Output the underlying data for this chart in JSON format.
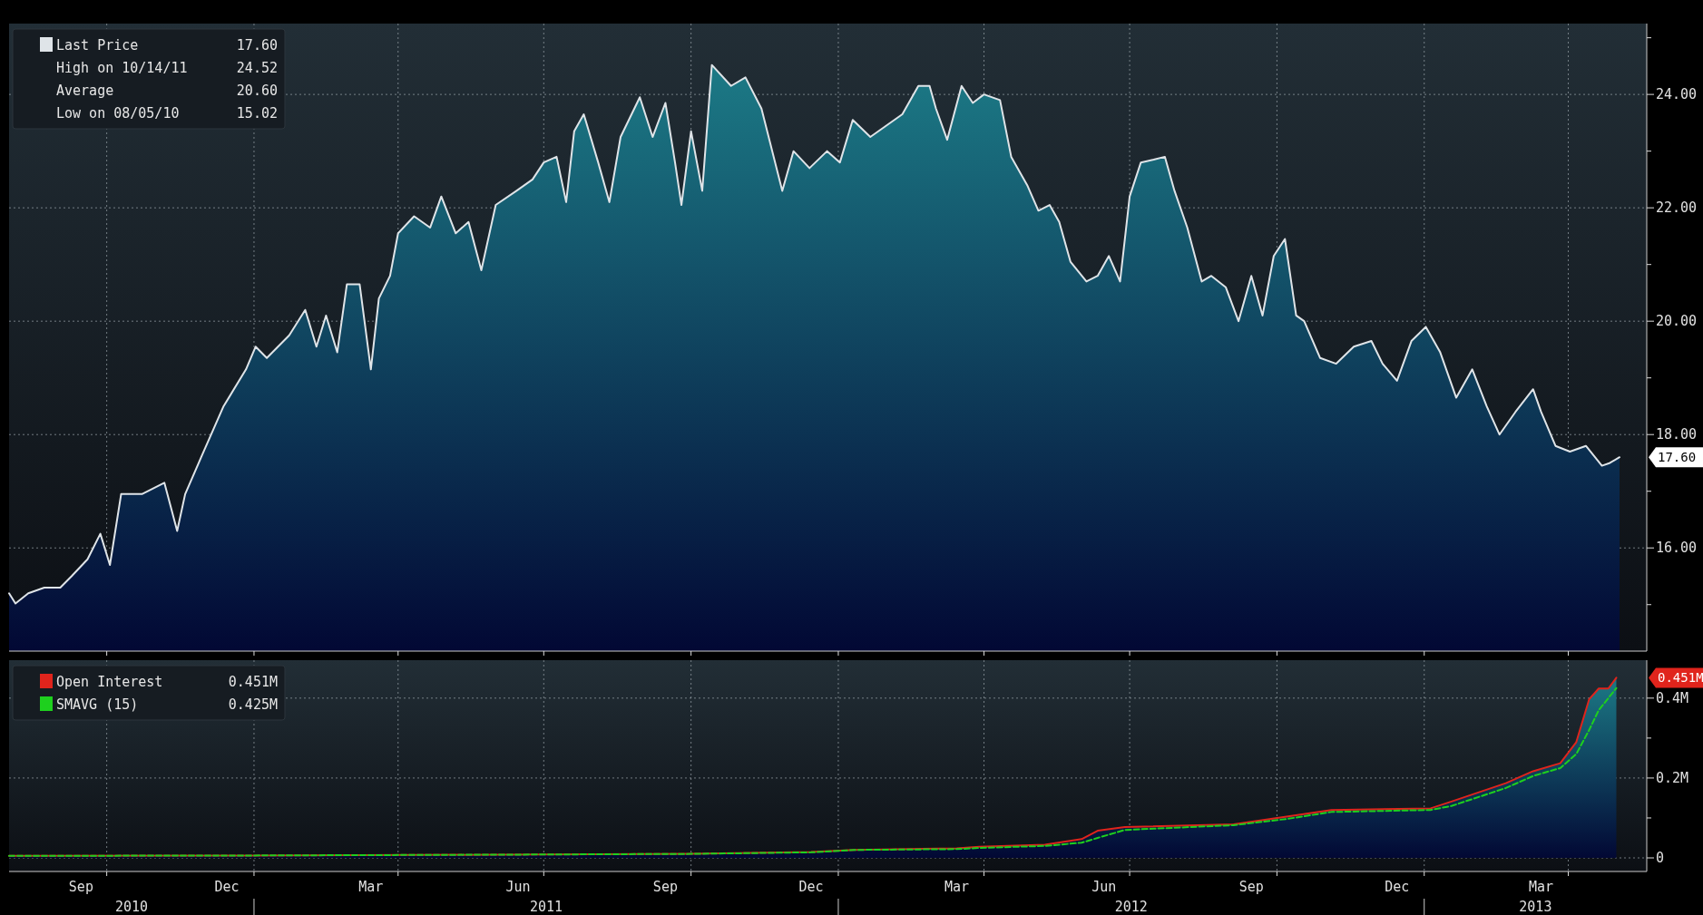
{
  "chart_data": [
    {
      "type": "area",
      "legend": "top left",
      "grid": true,
      "tick_labels": "y",
      "xlim": [
        "2010-08-01",
        "2013-05-20"
      ],
      "ylim": [
        14.18,
        25.25
      ],
      "xticks": [
        {
          "value": "2010-10-01",
          "label": null
        },
        {
          "value": "2011-01-01",
          "label": null
        },
        {
          "value": "2011-04-01",
          "label": null
        },
        {
          "value": "2011-07-01",
          "label": null
        },
        {
          "value": "2011-10-01",
          "label": null
        },
        {
          "value": "2012-01-01",
          "label": null
        },
        {
          "value": "2012-04-01",
          "label": null
        },
        {
          "value": "2012-07-01",
          "label": null
        },
        {
          "value": "2012-10-01",
          "label": null
        },
        {
          "value": "2013-01-01",
          "label": null
        },
        {
          "value": "2013-04-01",
          "label": null
        }
      ],
      "yticks": [
        {
          "value": 15,
          "label": null
        },
        {
          "value": 16,
          "label": "16.00"
        },
        {
          "value": 17,
          "label": null
        },
        {
          "value": 18,
          "label": "18.00"
        },
        {
          "value": 19,
          "label": null
        },
        {
          "value": 20,
          "label": "20.00"
        },
        {
          "value": 21,
          "label": null
        },
        {
          "value": 22,
          "label": "22.00"
        },
        {
          "value": 23,
          "label": null
        },
        {
          "value": 24,
          "label": "24.00"
        },
        {
          "value": 25,
          "label": null
        }
      ],
      "annotations": [
        "17.60",
        "High on 10/14/11",
        "24.52",
        "Average",
        "20.60",
        "Low on 08/05/10",
        "15.02",
        "17.60"
      ],
      "series": [
        {
          "name": "Last Price",
          "color": "#dfe4e8",
          "x": [
            "2010-08-01",
            "2010-08-05",
            "2010-08-13",
            "2010-08-23",
            "2010-09-02",
            "2010-09-09",
            "2010-09-19",
            "2010-09-27",
            "2010-10-03",
            "2010-10-10",
            "2010-10-23",
            "2010-11-06",
            "2010-11-14",
            "2010-11-19",
            "2010-11-29",
            "2010-12-13",
            "2010-12-27",
            "2011-01-02",
            "2011-01-09",
            "2011-01-23",
            "2011-02-02",
            "2011-02-09",
            "2011-02-15",
            "2011-02-22",
            "2011-02-28",
            "2011-03-08",
            "2011-03-15",
            "2011-03-20",
            "2011-03-27",
            "2011-04-01",
            "2011-04-11",
            "2011-04-21",
            "2011-04-28",
            "2011-05-07",
            "2011-05-15",
            "2011-05-23",
            "2011-06-01",
            "2011-06-14",
            "2011-06-24",
            "2011-07-01",
            "2011-07-09",
            "2011-07-15",
            "2011-07-20",
            "2011-07-26",
            "2011-08-04",
            "2011-08-11",
            "2011-08-18",
            "2011-08-30",
            "2011-09-07",
            "2011-09-15",
            "2011-09-21",
            "2011-09-25",
            "2011-10-01",
            "2011-10-08",
            "2011-10-14",
            "2011-10-26",
            "2011-11-04",
            "2011-11-14",
            "2011-11-27",
            "2011-12-04",
            "2011-12-14",
            "2011-12-25",
            "2012-01-02",
            "2012-01-10",
            "2012-01-21",
            "2012-01-31",
            "2012-02-10",
            "2012-02-20",
            "2012-02-27",
            "2012-03-02",
            "2012-03-09",
            "2012-03-18",
            "2012-03-25",
            "2012-04-01",
            "2012-04-11",
            "2012-04-18",
            "2012-04-28",
            "2012-05-05",
            "2012-05-12",
            "2012-05-18",
            "2012-05-25",
            "2012-06-04",
            "2012-06-11",
            "2012-06-18",
            "2012-06-25",
            "2012-07-01",
            "2012-07-08",
            "2012-07-16",
            "2012-07-23",
            "2012-07-29",
            "2012-08-06",
            "2012-08-15",
            "2012-08-21",
            "2012-08-30",
            "2012-09-07",
            "2012-09-15",
            "2012-09-22",
            "2012-09-29",
            "2012-10-06",
            "2012-10-13",
            "2012-10-18",
            "2012-10-28",
            "2012-11-07",
            "2012-11-18",
            "2012-11-29",
            "2012-12-06",
            "2012-12-15",
            "2012-12-24",
            "2013-01-02",
            "2013-01-11",
            "2013-01-21",
            "2013-01-31",
            "2013-02-09",
            "2013-02-17",
            "2013-02-27",
            "2013-03-10",
            "2013-03-15",
            "2013-03-24",
            "2013-04-02",
            "2013-04-12",
            "2013-04-22",
            "2013-04-27",
            "2013-05-03"
          ],
          "values": [
            15.2,
            15.02,
            15.2,
            15.3,
            15.3,
            15.5,
            15.8,
            16.25,
            15.7,
            16.95,
            16.95,
            17.15,
            16.3,
            16.95,
            17.6,
            18.5,
            19.15,
            19.55,
            19.35,
            19.75,
            20.2,
            19.55,
            20.1,
            19.45,
            20.65,
            20.65,
            19.15,
            20.4,
            20.8,
            21.55,
            21.85,
            21.65,
            22.2,
            21.55,
            21.75,
            20.9,
            22.05,
            22.3,
            22.5,
            22.8,
            22.9,
            22.1,
            23.35,
            23.65,
            22.8,
            22.1,
            23.25,
            23.95,
            23.25,
            23.85,
            22.8,
            22.05,
            23.35,
            22.3,
            24.52,
            24.15,
            24.3,
            23.75,
            22.3,
            23,
            22.7,
            23,
            22.8,
            23.55,
            23.25,
            23.45,
            23.65,
            24.15,
            24.15,
            23.75,
            23.2,
            24.15,
            23.85,
            24,
            23.9,
            22.9,
            22.4,
            21.95,
            22.05,
            21.75,
            21.05,
            20.7,
            20.8,
            21.15,
            20.7,
            22.2,
            22.8,
            22.85,
            22.9,
            22.3,
            21.65,
            20.7,
            20.8,
            20.6,
            20,
            20.8,
            20.1,
            21.15,
            21.45,
            20.1,
            20,
            19.35,
            19.25,
            19.55,
            19.65,
            19.25,
            18.95,
            19.65,
            19.9,
            19.45,
            18.65,
            19.15,
            18.5,
            18,
            18.4,
            18.8,
            18.4,
            17.8,
            17.7,
            17.8,
            17.45,
            17.5,
            17.6
          ]
        }
      ]
    },
    {
      "type": "area",
      "legend": "top left",
      "grid": true,
      "xlim": [
        "2010-08-01",
        "2013-05-20"
      ],
      "ylim": [
        -0.034,
        0.495
      ],
      "xticks": [
        {
          "value": "2010-09-15",
          "label": "Sep"
        },
        {
          "value": "2010-10-01",
          "label": null
        },
        {
          "value": "2010-12-15",
          "label": "Dec"
        },
        {
          "value": "2011-01-01",
          "label": null
        },
        {
          "value": "2011-03-15",
          "label": "Mar"
        },
        {
          "value": "2011-04-01",
          "label": null
        },
        {
          "value": "2011-06-15",
          "label": "Jun"
        },
        {
          "value": "2011-07-01",
          "label": null
        },
        {
          "value": "2011-09-15",
          "label": "Sep"
        },
        {
          "value": "2011-10-01",
          "label": null
        },
        {
          "value": "2011-12-15",
          "label": "Dec"
        },
        {
          "value": "2012-01-01",
          "label": null
        },
        {
          "value": "2012-03-15",
          "label": "Mar"
        },
        {
          "value": "2012-04-01",
          "label": null
        },
        {
          "value": "2012-06-15",
          "label": "Jun"
        },
        {
          "value": "2012-07-01",
          "label": null
        },
        {
          "value": "2012-09-15",
          "label": "Sep"
        },
        {
          "value": "2012-10-01",
          "label": null
        },
        {
          "value": "2012-12-15",
          "label": "Dec"
        },
        {
          "value": "2013-01-01",
          "label": null
        },
        {
          "value": "2013-03-15",
          "label": "Mar"
        },
        {
          "value": "2013-04-01",
          "label": null
        }
      ],
      "yticks": [
        0,
        {
          "value": 0.1,
          "label": null
        },
        {
          "value": 0.2,
          "label": "0.2M"
        },
        {
          "value": 0.3,
          "label": null
        },
        {
          "value": 0.4,
          "label": "0.4M"
        }
      ],
      "annotations": [
        "0.451M",
        "0.425M",
        "2010",
        "2011",
        "2012",
        "2013",
        "0.451M"
      ],
      "x": [
        "2010-08-01",
        "2011-01-01",
        "2011-06-01",
        "2011-10-01",
        "2011-12-15",
        "2012-01-11",
        "2012-03-15",
        "2012-03-29",
        "2012-05-09",
        "2012-06-01",
        "2012-06-11",
        "2012-06-28",
        "2012-09-04",
        "2012-10-08",
        "2012-11-04",
        "2013-01-05",
        "2013-01-18",
        "2013-02-21",
        "2013-03-10",
        "2013-03-27",
        "2013-04-06",
        "2013-04-14",
        "2013-04-20",
        "2013-04-26",
        "2013-05-01"
      ],
      "series": [
        {
          "name": "Open Interest",
          "color": "#e0241c",
          "values": [
            0.005,
            0.006,
            0.008,
            0.01,
            0.015,
            0.02,
            0.024,
            0.028,
            0.033,
            0.047,
            0.068,
            0.077,
            0.084,
            0.104,
            0.12,
            0.124,
            0.141,
            0.187,
            0.217,
            0.237,
            0.29,
            0.397,
            0.424,
            0.424,
            0.451
          ]
        },
        {
          "name": "SMAVG (15)",
          "type": "line",
          "color": "#1ed01e",
          "line_style": "dashed",
          "values": [
            0.005,
            0.006,
            0.008,
            0.01,
            0.014,
            0.02,
            0.022,
            0.025,
            0.03,
            0.038,
            0.05,
            0.07,
            0.082,
            0.098,
            0.115,
            0.12,
            0.13,
            0.175,
            0.205,
            0.225,
            0.26,
            0.32,
            0.37,
            0.4,
            0.425
          ]
        }
      ]
    }
  ]
}
